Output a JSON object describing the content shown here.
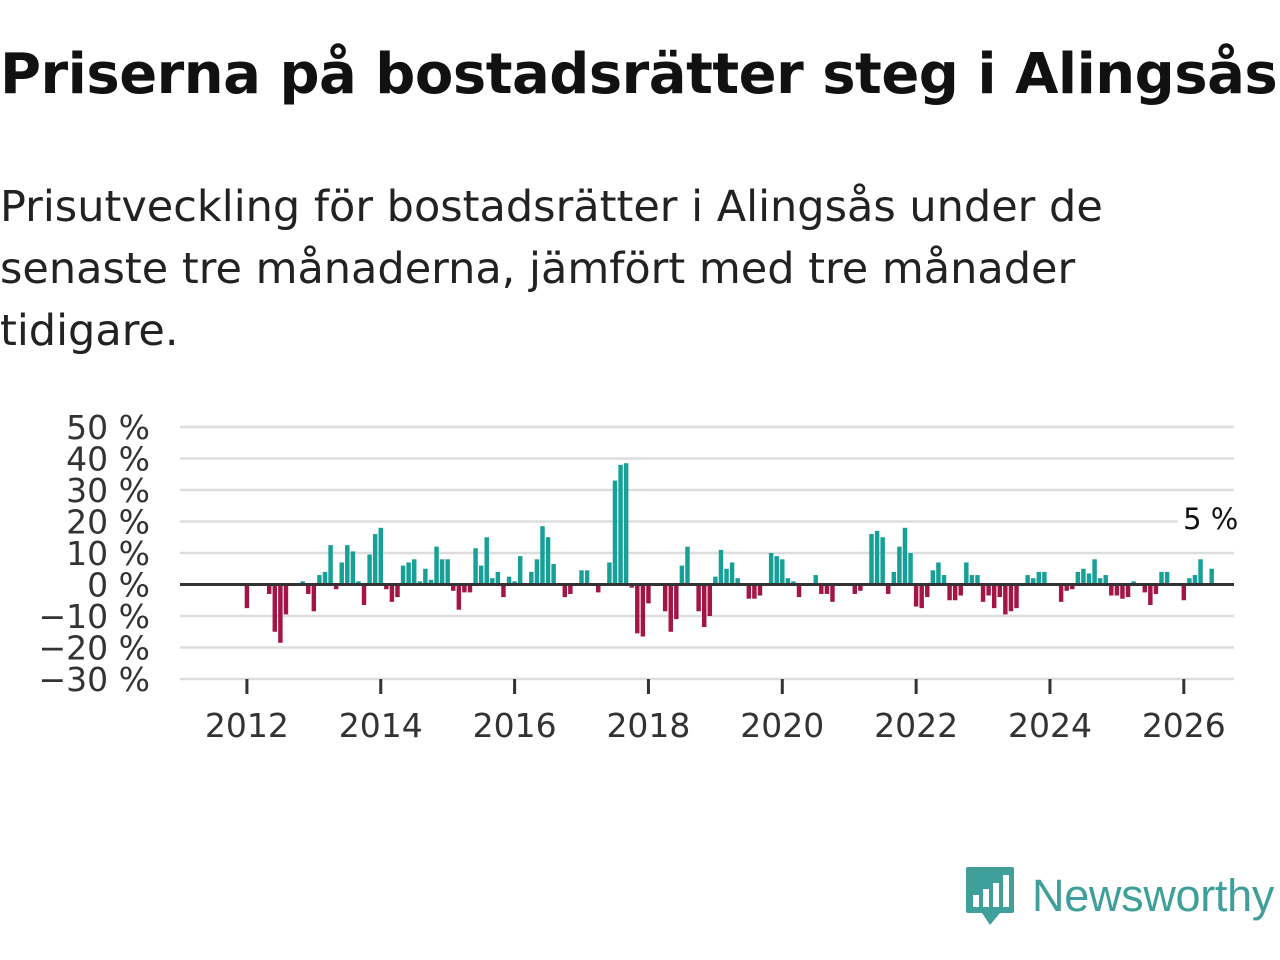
{
  "title": "Priserna på bostadsrätter steg i Alingsås",
  "subtitle": "Prisutveckling för bostadsrätter i Alingsås under de senaste tre månaderna, jämfört med tre månader tidigare.",
  "logo": {
    "text": "Newsworthy",
    "icon": "newsworthy-logo-icon",
    "color": "#3f9f9a"
  },
  "colors": {
    "positive": "#17a097",
    "negative": "#a31547",
    "grid": "#dddddd",
    "zero": "#333333"
  },
  "chart_data": {
    "type": "bar",
    "title": "Priserna på bostadsrätter steg i Alingsås",
    "xlabel": "",
    "ylabel": "",
    "unit": "%",
    "ylim": [
      -30,
      50
    ],
    "y_ticks": [
      {
        "value": 50,
        "label": "50 %"
      },
      {
        "value": 40,
        "label": "40 %"
      },
      {
        "value": 30,
        "label": "30 %"
      },
      {
        "value": 20,
        "label": "20 %"
      },
      {
        "value": 10,
        "label": "10 %"
      },
      {
        "value": 0,
        "label": "0 %"
      },
      {
        "value": -10,
        "label": "−10 %"
      },
      {
        "value": -20,
        "label": "−20 %"
      },
      {
        "value": -30,
        "label": "−30 %"
      }
    ],
    "x_start": 2011.0,
    "x_end": 2026.75,
    "x_ticks": [
      {
        "value": 2012,
        "label": "2012"
      },
      {
        "value": 2014,
        "label": "2014"
      },
      {
        "value": 2016,
        "label": "2016"
      },
      {
        "value": 2018,
        "label": "2018"
      },
      {
        "value": 2020,
        "label": "2020"
      },
      {
        "value": 2022,
        "label": "2022"
      },
      {
        "value": 2024,
        "label": "2024"
      },
      {
        "value": 2026,
        "label": "2026"
      }
    ],
    "series_start": 2012.0,
    "series_step_months": 1,
    "values": [
      -7.5,
      0,
      0,
      0,
      -3,
      -15,
      -18.5,
      -9.5,
      0,
      0,
      1,
      -3,
      -8.5,
      3,
      4,
      12.5,
      -1.5,
      7,
      12.5,
      10.5,
      1,
      -6.5,
      9.5,
      16,
      18,
      -1.5,
      -5.5,
      -4,
      6,
      7,
      8,
      1,
      5,
      1.5,
      12,
      8,
      8,
      -2,
      -8,
      -2.5,
      -2.5,
      11.5,
      6,
      15,
      2,
      4,
      -4,
      2.5,
      1,
      9,
      0,
      4,
      8,
      18.5,
      15,
      6.5,
      0,
      -4,
      -3,
      0,
      4.5,
      4.5,
      0,
      -2.5,
      0,
      7,
      33,
      38,
      38.5,
      -1,
      -15.5,
      -16.5,
      -6,
      0,
      0,
      -8.5,
      -15,
      -11,
      6,
      12,
      0,
      -8.5,
      -13.5,
      -10,
      2.5,
      11,
      5,
      7,
      2,
      0,
      -4.5,
      -4.5,
      -3.5,
      0,
      10,
      9,
      8,
      2,
      1,
      -4,
      0,
      0,
      3,
      -3,
      -3,
      -5.5,
      0,
      0,
      0,
      -3,
      -2,
      0,
      16,
      17,
      15,
      -3,
      4,
      12,
      18,
      10,
      -7,
      -7.5,
      -4,
      4.5,
      7,
      3,
      -5,
      -5,
      -3.5,
      7,
      3,
      3,
      -5.5,
      -3.5,
      -7.5,
      -4,
      -9.5,
      -8.5,
      -7.5,
      0,
      3,
      2,
      4,
      4,
      0,
      0,
      -5.5,
      -2,
      -1.5,
      4,
      5,
      3.5,
      8,
      2,
      3,
      -3.5,
      -3.5,
      -4.5,
      -4,
      1,
      0,
      -2.5,
      -6.5,
      -3,
      4,
      4,
      0,
      0,
      -5,
      2,
      3,
      8,
      0,
      5
    ],
    "last_label": "5 %"
  }
}
